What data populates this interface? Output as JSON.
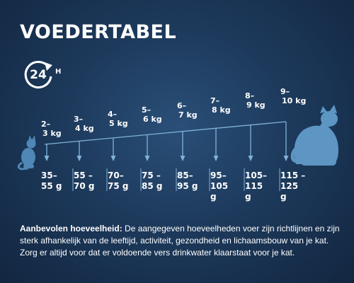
{
  "title": "VOEDERTABEL",
  "clock": {
    "number": "24",
    "unit": "H",
    "icon": "24h-clock-icon"
  },
  "colors": {
    "background": "#1d3a5c",
    "accent": "#7fb3d8",
    "text": "#ffffff"
  },
  "columns": [
    {
      "weight_top": "2–",
      "weight_bottom": "3 kg",
      "portion_top": "35–",
      "portion_bottom": "55 g"
    },
    {
      "weight_top": "3–",
      "weight_bottom": "4 kg",
      "portion_top": "55 –",
      "portion_bottom": "70 g"
    },
    {
      "weight_top": "4–",
      "weight_bottom": "5 kg",
      "portion_top": "70–",
      "portion_bottom": "75 g"
    },
    {
      "weight_top": "5–",
      "weight_bottom": "6 kg",
      "portion_top": "75 –",
      "portion_bottom": "85 g"
    },
    {
      "weight_top": "6–",
      "weight_bottom": "7 kg",
      "portion_top": "85–",
      "portion_bottom": "95 g"
    },
    {
      "weight_top": "7–",
      "weight_bottom": "8 kg",
      "portion_top": "95–",
      "portion_bottom": "105 g"
    },
    {
      "weight_top": "8–",
      "weight_bottom": "9 kg",
      "portion_top": "105–",
      "portion_bottom": "115 g"
    },
    {
      "weight_top": "9–",
      "weight_bottom": "10 kg",
      "portion_top": "115 –",
      "portion_bottom": "125 g"
    }
  ],
  "info": {
    "label": "Aanbevolen hoeveelheid:",
    "text": " De aangegeven hoeveelheden voer zijn richtlijnen en zijn sterk afhankelijk van de leeftijd, activiteit, gezondheid en lichaamsbouw van je kat. Zorg er altijd voor dat er voldoende vers drinkwater klaarstaat voor je kat."
  },
  "icons": {
    "small_cat": "small-cat-icon",
    "large_cat": "large-cat-icon"
  }
}
